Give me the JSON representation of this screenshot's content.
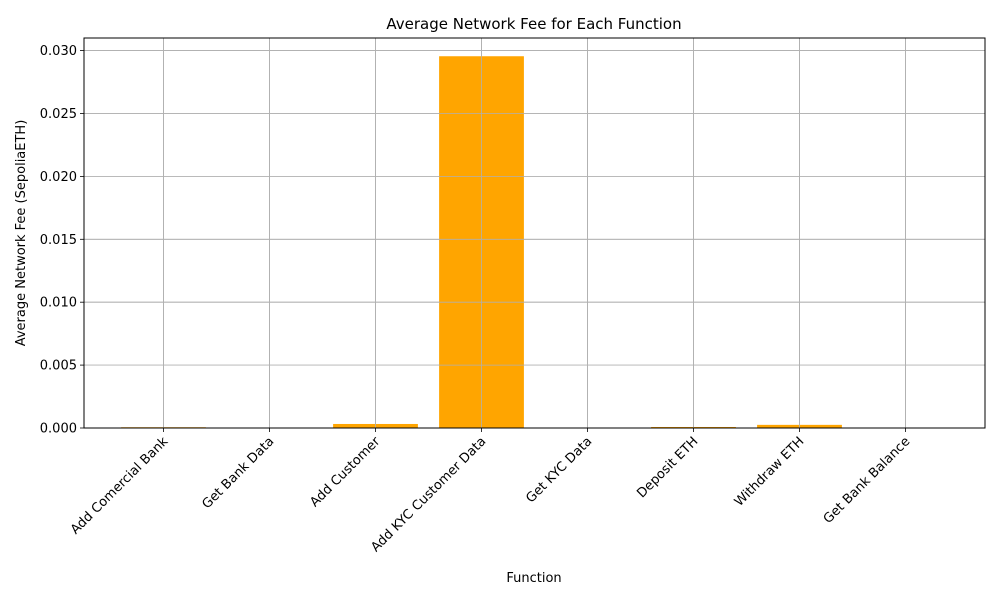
{
  "chart_data": {
    "type": "bar",
    "title": "Average Network Fee for Each Function",
    "xlabel": "Function",
    "ylabel": "Average Network Fee (SepoliaETH)",
    "categories": [
      "Add Comercial Bank",
      "Get Bank Data",
      "Add Customer",
      "Add KYC Customer Data",
      "Get KYC Data",
      "Deposit ETH",
      "Withdraw ETH",
      "Get Bank Balance"
    ],
    "values": [
      6e-05,
      0.0,
      0.00032,
      0.02955,
      0.0,
      8e-05,
      0.00025,
      0.0
    ],
    "ylim": [
      0,
      0.031
    ],
    "yticks": [
      "0.000",
      "0.005",
      "0.010",
      "0.015",
      "0.020",
      "0.025",
      "0.030"
    ],
    "grid": true,
    "bar_color": "#ffa500",
    "grid_color": "#b0b0b0"
  }
}
